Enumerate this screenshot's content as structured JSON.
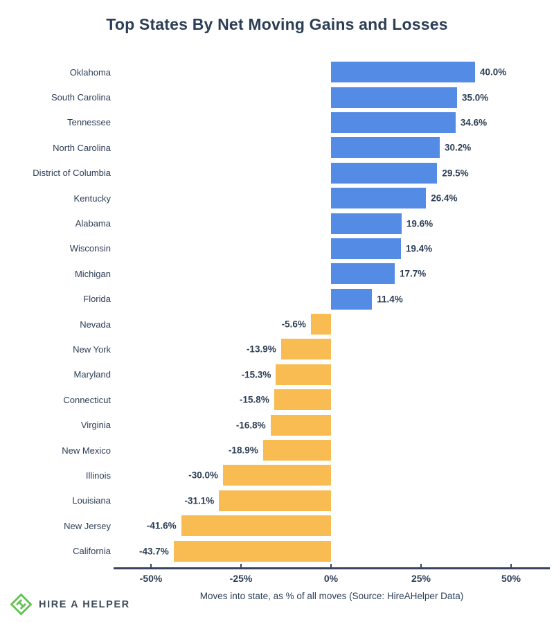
{
  "title": "Top States By Net Moving Gains and Losses",
  "chart_data": {
    "type": "bar",
    "orientation": "horizontal",
    "title": "Top States By Net Moving Gains and Losses",
    "categories": [
      "Oklahoma",
      "South Carolina",
      "Tennessee",
      "North Carolina",
      "District of Columbia",
      "Kentucky",
      "Alabama",
      "Wisconsin",
      "Michigan",
      "Florida",
      "Nevada",
      "New York",
      "Maryland",
      "Connecticut",
      "Virginia",
      "New Mexico",
      "Illinois",
      "Louisiana",
      "New Jersey",
      "California"
    ],
    "values": [
      40.0,
      35.0,
      34.6,
      30.2,
      29.5,
      26.4,
      19.6,
      19.4,
      17.7,
      11.4,
      -5.6,
      -13.9,
      -15.3,
      -15.8,
      -16.8,
      -18.9,
      -30.0,
      -31.1,
      -41.6,
      -43.7
    ],
    "value_labels": [
      "40.0%",
      "35.0%",
      "34.6%",
      "30.2%",
      "29.5%",
      "26.4%",
      "19.6%",
      "19.4%",
      "17.7%",
      "11.4%",
      "-5.6%",
      "-13.9%",
      "-15.3%",
      "-15.8%",
      "-16.8%",
      "-18.9%",
      "-30.0%",
      "-31.1%",
      "-41.6%",
      "-43.7%"
    ],
    "xlabel": "Moves into state, as % of all moves (Source: HireAHelper Data)",
    "x_tick_values": [
      -50,
      -25,
      0,
      25,
      50
    ],
    "x_tick_labels": [
      "-50%",
      "-25%",
      "0%",
      "25%",
      "50%"
    ],
    "xlim": [
      -60,
      60
    ],
    "grid": false,
    "legend_position": "none",
    "positive_color": "#548be4",
    "negative_color": "#f9bc53",
    "axis_color": "#39455e",
    "text_color": "#2c3e55"
  },
  "footer": {
    "brand": "HIRE A HELPER",
    "brand_text_color": "#3e4c5b",
    "logo_color": "#5fc24d"
  }
}
